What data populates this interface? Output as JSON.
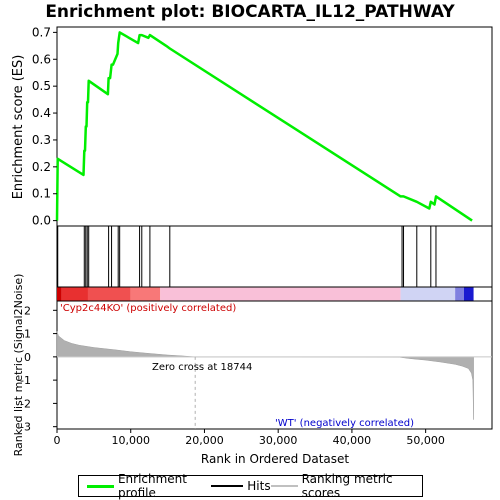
{
  "title": "Enrichment plot: BIOCARTA_IL12_PATHWAY",
  "colors": {
    "es_line": "#00ee00",
    "hit": "#000000",
    "metric_fill": "#b0b0b0",
    "zero_line": "#b0b0b0",
    "pos_label": "#cc0000",
    "neg_label": "#0000cc"
  },
  "legend": {
    "items": [
      {
        "label": "Enrichment profile",
        "color": "#00ee00"
      },
      {
        "label": "Hits",
        "color": "#000000"
      },
      {
        "label": "Ranking metric scores",
        "color": "#c0c0c0"
      }
    ]
  },
  "chart_data": [
    {
      "type": "line",
      "panel": "enrichment",
      "ylabel": "Enrichment score (ES)",
      "ylim": [
        -0.02,
        0.72
      ],
      "yticks": [
        0.0,
        0.1,
        0.2,
        0.3,
        0.4,
        0.5,
        0.6,
        0.7
      ],
      "xlim": [
        0,
        59000
      ],
      "series": [
        {
          "name": "Enrichment profile",
          "x": [
            0,
            100,
            3600,
            3700,
            3800,
            3900,
            4000,
            4100,
            4200,
            4300,
            6900,
            7000,
            7200,
            7400,
            7600,
            8200,
            8300,
            8500,
            11000,
            11200,
            11500,
            12400,
            12600,
            14800,
            15300,
            46600,
            46800,
            47000,
            48800,
            50500,
            50700,
            51200,
            51400,
            56300
          ],
          "y": [
            0.0,
            0.23,
            0.17,
            0.26,
            0.26,
            0.35,
            0.35,
            0.44,
            0.44,
            0.52,
            0.47,
            0.53,
            0.53,
            0.58,
            0.58,
            0.62,
            0.66,
            0.7,
            0.66,
            0.69,
            0.69,
            0.68,
            0.69,
            0.65,
            0.64,
            0.09,
            0.09,
            0.09,
            0.07,
            0.045,
            0.07,
            0.06,
            0.09,
            0.0
          ]
        }
      ]
    },
    {
      "type": "hits",
      "panel": "hits",
      "positions": [
        100,
        3700,
        3900,
        4100,
        4300,
        7000,
        7400,
        8300,
        8500,
        11200,
        11500,
        12600,
        15300,
        46800,
        47000,
        48800,
        50700,
        51400
      ]
    },
    {
      "type": "area",
      "panel": "ranked_metric",
      "ylabel": "Ranked list metric (Signal2Noise)",
      "xlabel": "Rank in Ordered Dataset",
      "ylim": [
        -3.1,
        2.4
      ],
      "yticks": [
        -3,
        -2,
        -1,
        0,
        1,
        2
      ],
      "xticks": [
        0,
        10000,
        20000,
        30000,
        40000,
        50000
      ],
      "xtick_labels": [
        "0",
        "10,000",
        "20,000",
        "30,000",
        "40,000",
        "50,000"
      ],
      "xlim": [
        0,
        59000
      ],
      "x": [
        0,
        200,
        1000,
        2000,
        3000,
        5000,
        8000,
        10000,
        12000,
        15000,
        17000,
        18744,
        30000,
        46500,
        48000,
        50000,
        52000,
        54000,
        55000,
        55800,
        56200,
        56400,
        56500
      ],
      "values": [
        1.1,
        0.9,
        0.7,
        0.58,
        0.5,
        0.4,
        0.3,
        0.22,
        0.16,
        0.08,
        0.04,
        0.0,
        0.0,
        -0.02,
        -0.08,
        -0.14,
        -0.22,
        -0.32,
        -0.4,
        -0.5,
        -0.7,
        -1.0,
        -2.7
      ],
      "zero_cross_label": "Zero cross at 18744",
      "zero_cross_x": 18744,
      "pos_label": "'Cyp2c44KO' (positively correlated)",
      "neg_label": "'WT' (negatively correlated)"
    }
  ]
}
